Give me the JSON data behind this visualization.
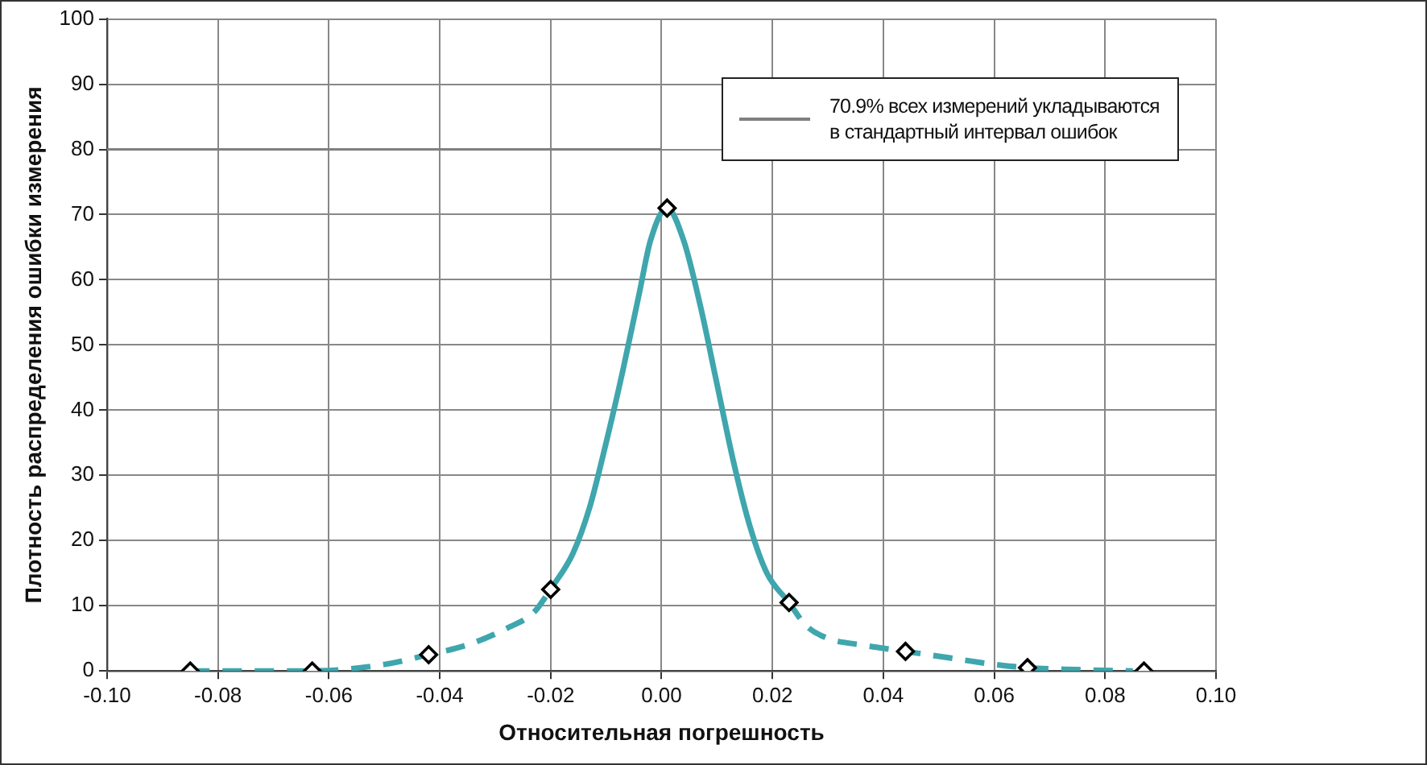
{
  "chart_data": {
    "type": "line",
    "xlabel": "Относительная погрешность",
    "ylabel": "Плотность распределения ошибки измерения",
    "xlim": [
      -0.1,
      0.1
    ],
    "xticks": [
      {
        "value": -0.1,
        "label": "-0.10"
      },
      {
        "value": -0.08,
        "label": "-0.08"
      },
      {
        "value": -0.06,
        "label": "-0.06"
      },
      {
        "value": -0.04,
        "label": "-0.04"
      },
      {
        "value": -0.02,
        "label": "-0.02"
      },
      {
        "value": 0,
        "label": "0.00"
      },
      {
        "value": 0.02,
        "label": "0.02"
      },
      {
        "value": 0.04,
        "label": "0.04"
      },
      {
        "value": 0.06,
        "label": "0.06"
      },
      {
        "value": 0.08,
        "label": "0.08"
      },
      {
        "value": 0.1,
        "label": "0.10"
      }
    ],
    "ylim": [
      0,
      100
    ],
    "yticks": [
      0,
      10,
      20,
      30,
      40,
      50,
      60,
      70,
      80,
      90,
      100
    ],
    "grid": true,
    "legend": "top right",
    "series": [
      {
        "name": "70.9%  всех измерений укладываются в стандартный интервал ошибок",
        "color": "#7f7f7f",
        "line_style": "solid",
        "marker": "none",
        "x": [
          -0.1,
          0.0
        ],
        "values": [
          80,
          80
        ]
      },
      {
        "color": "#3fa6ad",
        "line_style": "dashed",
        "marker": "none",
        "x": [
          -0.085,
          -0.075,
          -0.063,
          -0.05,
          -0.042,
          -0.035,
          -0.028,
          -0.023,
          -0.02
        ],
        "values": [
          0,
          0,
          0,
          1,
          2.5,
          4,
          6.5,
          9,
          12.5
        ]
      },
      {
        "color": "#3fa6ad",
        "line_style": "solid",
        "marker": "none",
        "x": [
          -0.02,
          -0.016,
          -0.013,
          -0.01,
          -0.007,
          -0.004,
          -0.002,
          0.001,
          0.004,
          0.007,
          0.01,
          0.013,
          0.016,
          0.019,
          0.023
        ],
        "values": [
          12.5,
          18,
          25,
          35,
          46,
          58,
          66,
          71,
          66,
          56,
          44,
          32,
          22,
          15,
          10.5
        ]
      },
      {
        "color": "#3fa6ad",
        "line_style": "dashed",
        "marker": "none",
        "x": [
          0.023,
          0.026,
          0.03,
          0.036,
          0.044,
          0.052,
          0.06,
          0.066,
          0.075,
          0.085
        ],
        "values": [
          10.5,
          7,
          5,
          4,
          3,
          2,
          1,
          0.5,
          0.2,
          0
        ]
      },
      {
        "type": "scatter",
        "color": "#000000",
        "marker": "diamond",
        "x": [
          -0.085,
          -0.063,
          -0.042,
          -0.02,
          0.001,
          0.023,
          0.044,
          0.066,
          0.087
        ],
        "values": [
          0,
          0,
          2.5,
          12.5,
          71,
          10.5,
          3,
          0.5,
          0
        ]
      }
    ]
  }
}
